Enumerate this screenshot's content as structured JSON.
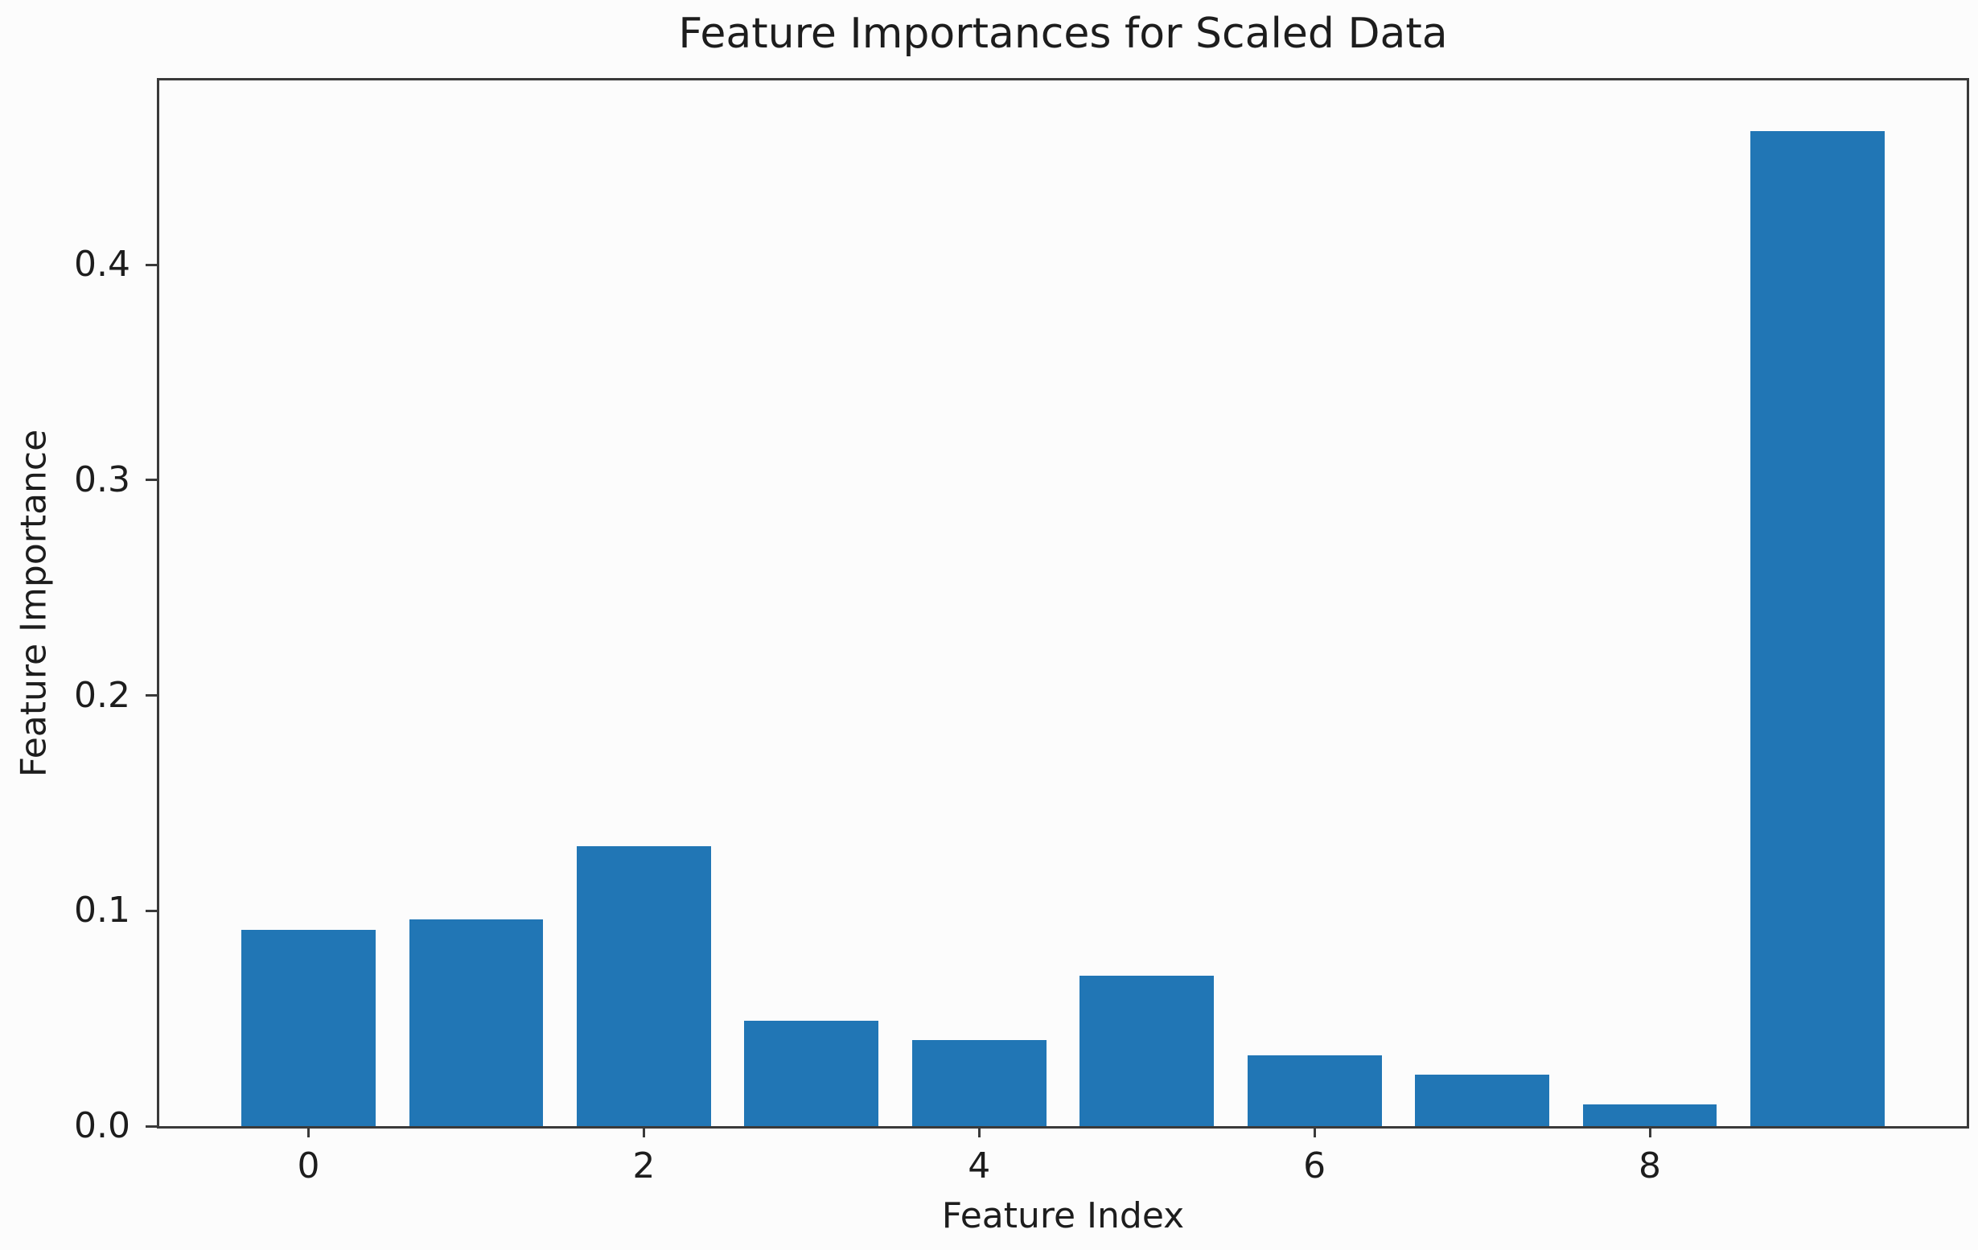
{
  "figure": {
    "background_color": "#fcfcfc",
    "text_color": "#1d1d1d",
    "spine_color": "#3a3a3a"
  },
  "chart_data": {
    "type": "bar",
    "title": "Feature Importances for Scaled Data",
    "xlabel": "Feature Index",
    "ylabel": "Feature Importance",
    "categories": [
      0,
      1,
      2,
      3,
      4,
      5,
      6,
      7,
      8,
      9
    ],
    "values": [
      0.091,
      0.096,
      0.13,
      0.049,
      0.04,
      0.07,
      0.033,
      0.024,
      0.01,
      0.462
    ],
    "bar_color": "#2176b5",
    "bar_width": 0.8,
    "xlim": [
      -0.89,
      9.89
    ],
    "ylim": [
      0,
      0.4856
    ],
    "x_ticks": [
      0,
      2,
      4,
      6,
      8
    ],
    "x_tick_labels": [
      "0",
      "2",
      "4",
      "6",
      "8"
    ],
    "y_ticks": [
      0.0,
      0.1,
      0.2,
      0.3,
      0.4
    ],
    "y_tick_labels": [
      "0.0",
      "0.1",
      "0.2",
      "0.3",
      "0.4"
    ],
    "grid": false,
    "legend": null
  }
}
